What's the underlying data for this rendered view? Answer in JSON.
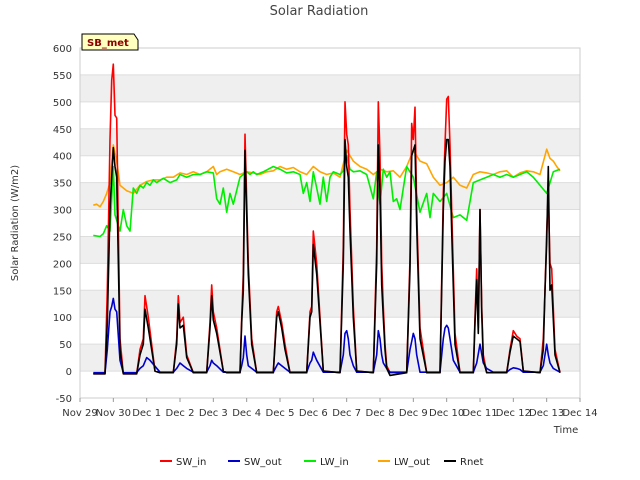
{
  "chart_data": {
    "type": "line",
    "title": "Solar Radiation",
    "xlabel": "Time",
    "ylabel": "Solar Radiation (W/m2)",
    "station_label": "SB_met",
    "xlim": [
      0,
      15
    ],
    "ylim": [
      -50,
      600
    ],
    "yticks": [
      -50,
      0,
      50,
      100,
      150,
      200,
      250,
      300,
      350,
      400,
      450,
      500,
      550,
      600
    ],
    "xticks": [
      {
        "value": 0,
        "label": "Nov 29"
      },
      {
        "value": 1,
        "label": "Nov 30"
      },
      {
        "value": 2,
        "label": "Dec 1"
      },
      {
        "value": 3,
        "label": "Dec 2"
      },
      {
        "value": 4,
        "label": "Dec 3"
      },
      {
        "value": 5,
        "label": "Dec 4"
      },
      {
        "value": 6,
        "label": "Dec 5"
      },
      {
        "value": 7,
        "label": "Dec 6"
      },
      {
        "value": 8,
        "label": "Dec 7"
      },
      {
        "value": 9,
        "label": "Dec 8"
      },
      {
        "value": 10,
        "label": "Dec 9"
      },
      {
        "value": 11,
        "label": "Dec 10"
      },
      {
        "value": 12,
        "label": "Dec 11"
      },
      {
        "value": 13,
        "label": "Dec 12"
      },
      {
        "value": 14,
        "label": "Dec 13"
      },
      {
        "value": 15,
        "label": "Dec 14"
      }
    ],
    "series": [
      {
        "name": "SW_in",
        "color": "#ff0000",
        "x": [
          0.4,
          0.75,
          0.82,
          0.9,
          0.95,
          1.0,
          1.05,
          1.1,
          1.2,
          1.3,
          1.7,
          1.8,
          1.9,
          1.95,
          2.05,
          2.25,
          2.4,
          2.8,
          2.9,
          2.95,
          3.0,
          3.1,
          3.2,
          3.4,
          3.8,
          3.9,
          3.95,
          4.0,
          4.1,
          4.3,
          4.4,
          4.8,
          4.85,
          4.9,
          4.95,
          5.05,
          5.15,
          5.3,
          5.8,
          5.9,
          5.95,
          6.05,
          6.15,
          6.3,
          6.8,
          6.9,
          6.95,
          7.0,
          7.1,
          7.3,
          7.8,
          7.9,
          7.95,
          8.0,
          8.05,
          8.1,
          8.2,
          8.3,
          8.8,
          8.9,
          8.95,
          9.0,
          9.05,
          9.1,
          9.15,
          9.2,
          9.3,
          9.8,
          9.9,
          9.95,
          10.0,
          10.05,
          10.1,
          10.2,
          10.4,
          10.8,
          10.9,
          10.95,
          11.0,
          11.05,
          11.1,
          11.15,
          11.25,
          11.4,
          11.8,
          11.85,
          11.9,
          11.95,
          12.0,
          12.05,
          12.1,
          12.2,
          12.4,
          12.8,
          12.9,
          13.0,
          13.1,
          13.2,
          13.3,
          13.8,
          13.9,
          13.95,
          14.0,
          14.05,
          14.1,
          14.15,
          14.25,
          14.4
        ],
        "y": [
          -5,
          -5,
          150,
          430,
          540,
          570,
          475,
          470,
          60,
          -5,
          -5,
          40,
          60,
          140,
          100,
          0,
          -3,
          -3,
          60,
          140,
          90,
          100,
          30,
          -3,
          -3,
          90,
          160,
          110,
          80,
          0,
          -3,
          -3,
          100,
          180,
          440,
          200,
          60,
          -3,
          -3,
          110,
          120,
          90,
          50,
          -3,
          -3,
          110,
          120,
          260,
          200,
          0,
          -3,
          230,
          500,
          440,
          420,
          300,
          120,
          0,
          -3,
          230,
          500,
          400,
          200,
          120,
          50,
          10,
          -3,
          -3,
          210,
          460,
          430,
          490,
          300,
          80,
          -3,
          -3,
          330,
          420,
          505,
          510,
          420,
          300,
          70,
          -3,
          -3,
          100,
          190,
          80,
          300,
          120,
          30,
          -3,
          -3,
          -3,
          40,
          75,
          65,
          60,
          0,
          -3,
          60,
          150,
          260,
          330,
          200,
          190,
          40,
          -3
        ]
      },
      {
        "name": "SW_out",
        "color": "#0000cc",
        "x": [
          0.4,
          0.75,
          0.82,
          0.9,
          0.95,
          1.0,
          1.05,
          1.1,
          1.2,
          1.3,
          1.7,
          1.8,
          1.9,
          2.0,
          2.1,
          2.4,
          2.8,
          2.9,
          3.0,
          3.1,
          3.2,
          3.4,
          3.8,
          3.9,
          3.95,
          4.0,
          4.1,
          4.3,
          4.4,
          4.8,
          4.85,
          4.9,
          4.95,
          5.0,
          5.05,
          5.15,
          5.3,
          5.8,
          5.9,
          5.95,
          6.05,
          6.15,
          6.3,
          6.8,
          6.9,
          6.95,
          7.0,
          7.1,
          7.3,
          7.8,
          7.9,
          7.95,
          8.0,
          8.05,
          8.1,
          8.2,
          8.3,
          8.8,
          8.9,
          8.95,
          9.0,
          9.05,
          9.1,
          9.2,
          9.3,
          9.8,
          9.9,
          9.95,
          10.0,
          10.05,
          10.1,
          10.2,
          10.4,
          10.8,
          10.9,
          10.95,
          11.0,
          11.05,
          11.1,
          11.2,
          11.4,
          11.8,
          11.9,
          12.0,
          12.1,
          12.2,
          12.4,
          12.8,
          12.9,
          13.0,
          13.1,
          13.2,
          13.3,
          13.8,
          13.9,
          13.95,
          14.0,
          14.05,
          14.1,
          14.2,
          14.4
        ],
        "y": [
          -3,
          -3,
          40,
          110,
          120,
          135,
          115,
          110,
          20,
          -3,
          -3,
          5,
          10,
          25,
          20,
          -2,
          -2,
          5,
          15,
          10,
          5,
          -2,
          -2,
          10,
          20,
          15,
          10,
          -2,
          -2,
          -2,
          10,
          25,
          65,
          30,
          10,
          5,
          -2,
          -2,
          10,
          15,
          10,
          5,
          -2,
          -2,
          15,
          20,
          35,
          20,
          -2,
          -2,
          30,
          70,
          75,
          60,
          30,
          10,
          -2,
          -2,
          30,
          75,
          60,
          30,
          15,
          5,
          -2,
          -2,
          40,
          55,
          70,
          60,
          30,
          -2,
          -2,
          -2,
          60,
          80,
          85,
          80,
          60,
          20,
          -2,
          -2,
          15,
          50,
          15,
          5,
          -2,
          -2,
          3,
          6,
          5,
          3,
          -2,
          -2,
          10,
          30,
          50,
          30,
          15,
          5,
          -2
        ]
      },
      {
        "name": "LW_in",
        "color": "#00ee00",
        "x": [
          0.4,
          0.6,
          0.7,
          0.8,
          0.9,
          1.0,
          1.05,
          1.1,
          1.2,
          1.3,
          1.4,
          1.5,
          1.6,
          1.7,
          1.8,
          1.9,
          2.0,
          2.1,
          2.2,
          2.3,
          2.5,
          2.7,
          2.9,
          3.0,
          3.2,
          3.4,
          3.6,
          3.8,
          4.0,
          4.1,
          4.2,
          4.3,
          4.4,
          4.5,
          4.6,
          4.8,
          4.9,
          5.0,
          5.1,
          5.2,
          5.3,
          5.5,
          5.8,
          6.0,
          6.2,
          6.4,
          6.6,
          6.7,
          6.8,
          6.9,
          7.0,
          7.1,
          7.2,
          7.3,
          7.4,
          7.5,
          7.6,
          7.8,
          7.9,
          8.0,
          8.1,
          8.2,
          8.4,
          8.6,
          8.8,
          8.9,
          9.0,
          9.1,
          9.2,
          9.3,
          9.4,
          9.5,
          9.6,
          9.8,
          10.0,
          10.2,
          10.4,
          10.5,
          10.6,
          10.8,
          11.0,
          11.2,
          11.4,
          11.6,
          11.8,
          12.0,
          12.2,
          12.4,
          12.6,
          12.8,
          13.0,
          13.2,
          13.4,
          13.5,
          13.6,
          13.8,
          14.0,
          14.2,
          14.4
        ],
        "y": [
          252,
          250,
          255,
          270,
          260,
          380,
          290,
          280,
          260,
          300,
          270,
          260,
          340,
          330,
          345,
          340,
          350,
          345,
          355,
          350,
          358,
          350,
          355,
          365,
          360,
          365,
          365,
          370,
          368,
          320,
          310,
          340,
          295,
          330,
          310,
          360,
          365,
          370,
          365,
          370,
          365,
          370,
          380,
          375,
          368,
          370,
          365,
          330,
          350,
          315,
          370,
          340,
          310,
          360,
          315,
          360,
          370,
          365,
          372,
          400,
          375,
          370,
          372,
          365,
          320,
          370,
          310,
          375,
          360,
          370,
          315,
          320,
          300,
          380,
          360,
          295,
          330,
          285,
          330,
          315,
          330,
          285,
          290,
          280,
          350,
          355,
          360,
          365,
          360,
          365,
          360,
          365,
          370,
          365,
          360,
          345,
          330,
          370,
          375
        ]
      },
      {
        "name": "LW_out",
        "color": "#ffa500",
        "x": [
          0.4,
          0.5,
          0.6,
          0.7,
          0.8,
          0.9,
          1.0,
          1.1,
          1.2,
          1.3,
          1.4,
          1.6,
          1.8,
          2.0,
          2.2,
          2.4,
          2.6,
          2.8,
          3.0,
          3.2,
          3.4,
          3.6,
          3.8,
          4.0,
          4.1,
          4.2,
          4.4,
          4.6,
          4.8,
          5.0,
          5.2,
          5.4,
          5.6,
          5.8,
          6.0,
          6.2,
          6.4,
          6.6,
          6.8,
          7.0,
          7.2,
          7.4,
          7.6,
          7.8,
          8.0,
          8.2,
          8.4,
          8.6,
          8.8,
          9.0,
          9.2,
          9.4,
          9.6,
          9.8,
          10.0,
          10.2,
          10.4,
          10.6,
          10.8,
          11.0,
          11.2,
          11.4,
          11.6,
          11.8,
          12.0,
          12.2,
          12.4,
          12.6,
          12.8,
          13.0,
          13.2,
          13.4,
          13.6,
          13.8,
          14.0,
          14.1,
          14.2,
          14.3,
          14.4
        ],
        "y": [
          308,
          310,
          305,
          315,
          330,
          350,
          420,
          390,
          345,
          340,
          335,
          330,
          345,
          352,
          355,
          355,
          360,
          360,
          368,
          365,
          370,
          365,
          370,
          380,
          365,
          370,
          375,
          370,
          365,
          370,
          368,
          365,
          370,
          372,
          380,
          375,
          378,
          370,
          365,
          380,
          370,
          365,
          368,
          360,
          410,
          390,
          380,
          375,
          365,
          375,
          370,
          372,
          360,
          380,
          410,
          390,
          385,
          360,
          345,
          350,
          360,
          345,
          340,
          365,
          370,
          368,
          365,
          370,
          372,
          360,
          368,
          372,
          370,
          365,
          412,
          395,
          390,
          380,
          372
        ]
      },
      {
        "name": "Rnet",
        "color": "#000000",
        "x": [
          0.4,
          0.75,
          0.82,
          0.9,
          0.95,
          1.0,
          1.05,
          1.1,
          1.2,
          1.3,
          1.7,
          1.8,
          1.9,
          1.95,
          2.05,
          2.25,
          2.4,
          2.8,
          2.9,
          2.95,
          3.0,
          3.1,
          3.2,
          3.4,
          3.8,
          3.9,
          3.95,
          4.0,
          4.1,
          4.3,
          4.4,
          4.8,
          4.85,
          4.9,
          4.95,
          5.05,
          5.15,
          5.3,
          5.8,
          5.9,
          5.95,
          6.05,
          6.15,
          6.3,
          6.8,
          6.9,
          6.95,
          7.0,
          7.1,
          7.3,
          7.8,
          7.9,
          7.95,
          8.0,
          8.05,
          8.1,
          8.2,
          8.3,
          8.8,
          8.9,
          8.95,
          9.0,
          9.05,
          9.1,
          9.15,
          9.2,
          9.3,
          9.8,
          9.9,
          9.95,
          10.0,
          10.05,
          10.1,
          10.2,
          10.4,
          10.8,
          10.9,
          10.95,
          11.0,
          11.05,
          11.1,
          11.15,
          11.25,
          11.4,
          11.8,
          11.85,
          11.9,
          11.95,
          12.0,
          12.05,
          12.1,
          12.2,
          12.4,
          12.8,
          12.9,
          13.0,
          13.1,
          13.2,
          13.3,
          13.8,
          13.9,
          13.95,
          14.0,
          14.05,
          14.1,
          14.15,
          14.25,
          14.4
        ],
        "y": [
          -5,
          -5,
          90,
          300,
          360,
          415,
          380,
          360,
          40,
          -5,
          -5,
          30,
          50,
          115,
          80,
          0,
          -3,
          -3,
          50,
          125,
          80,
          85,
          25,
          -3,
          -3,
          80,
          140,
          95,
          70,
          0,
          -3,
          -3,
          90,
          150,
          410,
          180,
          50,
          -3,
          -3,
          100,
          110,
          80,
          40,
          -3,
          -3,
          100,
          110,
          235,
          180,
          0,
          -3,
          200,
          430,
          380,
          360,
          260,
          100,
          0,
          -3,
          200,
          420,
          330,
          160,
          100,
          40,
          5,
          -8,
          -3,
          190,
          400,
          410,
          420,
          270,
          60,
          -3,
          -3,
          300,
          390,
          430,
          430,
          380,
          260,
          50,
          -3,
          -3,
          90,
          170,
          70,
          300,
          110,
          20,
          -3,
          -3,
          -3,
          35,
          65,
          60,
          55,
          0,
          -3,
          40,
          150,
          240,
          380,
          150,
          160,
          30,
          -3
        ]
      }
    ]
  }
}
